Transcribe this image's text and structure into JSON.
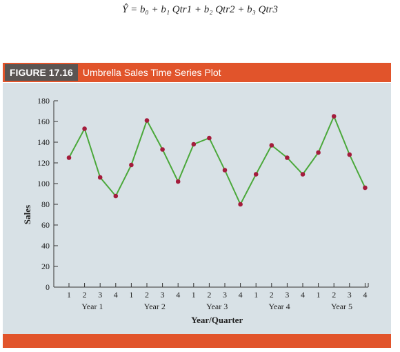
{
  "equation": "Ŷ = b₀ + b₁ Qtr1 + b₂ Qtr2 + b₃ Qtr3",
  "figure": {
    "label": "FIGURE 17.16",
    "title": "Umbrella Sales Time Series Plot"
  },
  "colors": {
    "accent": "#e1542b",
    "label_bg": "#5a5553",
    "panel": "#d8e1e6",
    "line": "#4aa83a",
    "marker": "#a41c3c"
  },
  "chart_data": {
    "type": "line",
    "xlabel": "Year/Quarter",
    "ylabel": "Sales",
    "ylim": [
      0,
      180
    ],
    "yticks": [
      0,
      20,
      40,
      60,
      80,
      100,
      120,
      140,
      160,
      180
    ],
    "quarter_labels": [
      "1",
      "2",
      "3",
      "4",
      "1",
      "2",
      "3",
      "4",
      "1",
      "2",
      "3",
      "4",
      "1",
      "2",
      "3",
      "4",
      "1",
      "2",
      "3",
      "4"
    ],
    "year_labels": [
      "Year 1",
      "Year 2",
      "Year 3",
      "Year 4",
      "Year 5"
    ],
    "grid": false,
    "series": [
      {
        "values": [
          125,
          153,
          106,
          88,
          118,
          161,
          133,
          102,
          138,
          144,
          113,
          80,
          109,
          137,
          125,
          109,
          130,
          165,
          128,
          96
        ]
      }
    ]
  }
}
